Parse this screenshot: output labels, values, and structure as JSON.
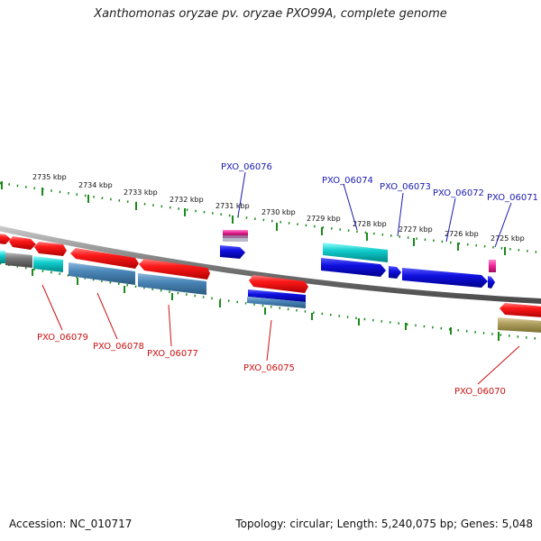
{
  "title": "Xanthomonas oryzae pv. oryzae PXO99A, complete genome",
  "footer": {
    "accession": "Accession: NC_010717",
    "summary": "Topology: circular; Length: 5,240,075 bp; Genes: 5,048"
  },
  "kbp_ticks": [
    "2735 kbp",
    "2734 kbp",
    "2733 kbp",
    "2732 kbp",
    "2731 kbp",
    "2730 kbp",
    "2729 kbp",
    "2728 kbp",
    "2727 kbp",
    "2726 kbp",
    "2725 kbp"
  ],
  "gene_labels_top": [
    "PXO_06076",
    "PXO_06074",
    "PXO_06073",
    "PXO_06072",
    "PXO_06071"
  ],
  "gene_labels_bottom": [
    "PXO_06079",
    "PXO_06078",
    "PXO_06077",
    "PXO_06075",
    "PXO_06070"
  ],
  "colors": {
    "forward": "#1010e0",
    "reverse": "#ee1111",
    "cyan": "#11cccc",
    "steel": "#4a86b8",
    "pink": "#ee2299",
    "olive": "#b0a060",
    "gray": "#777777",
    "tick": "#1a8a1a",
    "backbone": "#7a7a7a"
  }
}
